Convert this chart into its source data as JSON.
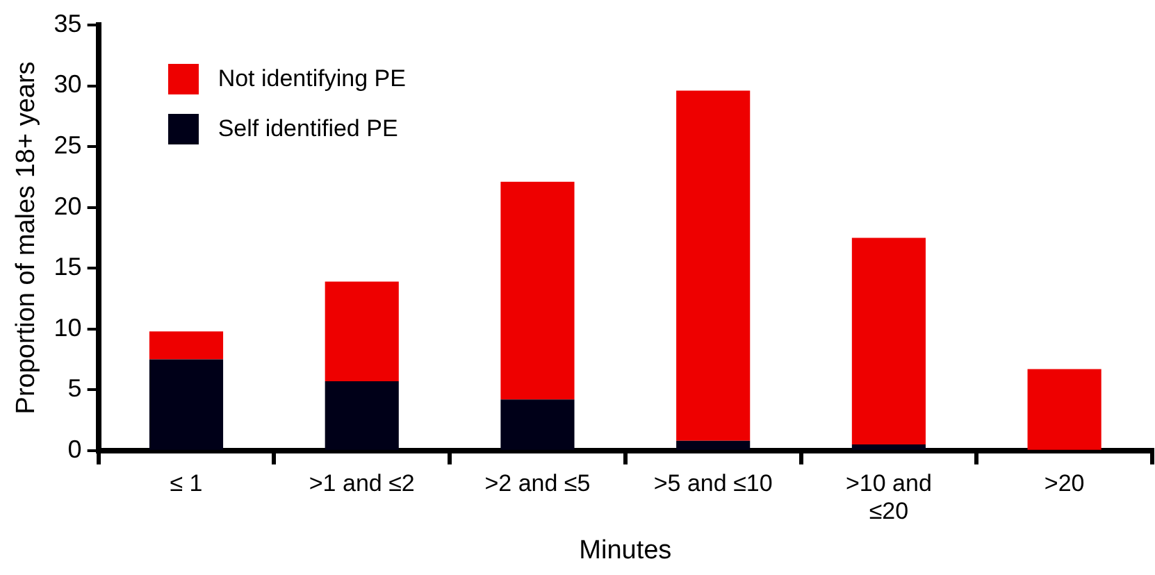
{
  "chart_data": {
    "type": "bar",
    "stacked": true,
    "xlabel": "Minutes",
    "ylabel": "Proportion of males 18+ years",
    "categories": [
      "≤ 1",
      ">1 and ≤2",
      ">2 and ≤5",
      ">5 and ≤10",
      ">10 and ≤20",
      ">20"
    ],
    "series": [
      {
        "name": "Self identified PE",
        "color": "#000018",
        "values": [
          7.5,
          5.7,
          4.2,
          0.8,
          0.5,
          0
        ]
      },
      {
        "name": "Not identifying PE",
        "color": "#ee0000",
        "values": [
          2.3,
          8.2,
          17.9,
          28.8,
          17.0,
          6.7
        ]
      }
    ],
    "ylim": [
      0,
      35
    ],
    "yticks": [
      0,
      5,
      10,
      15,
      20,
      25,
      30,
      35
    ],
    "grid": false,
    "legend": "top left"
  }
}
